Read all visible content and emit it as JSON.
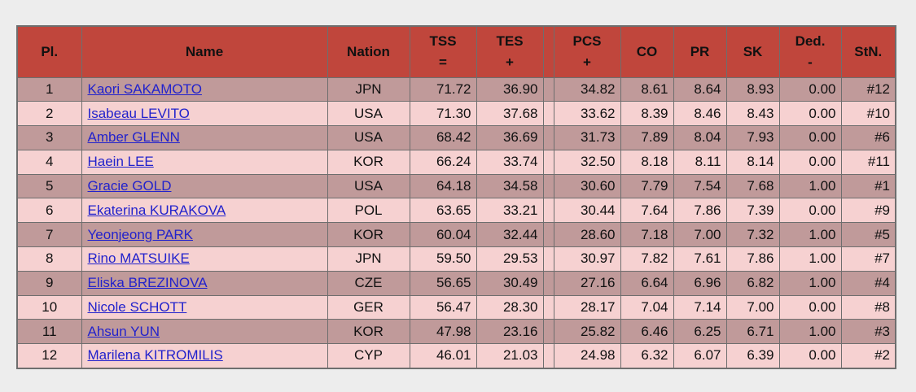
{
  "table": {
    "headers": {
      "place": "Pl.",
      "name": "Name",
      "nation": "Nation",
      "tss": [
        "TSS",
        "="
      ],
      "tes": [
        "TES",
        "+"
      ],
      "pcs": [
        "PCS",
        "+"
      ],
      "co": "CO",
      "pr": "PR",
      "sk": "SK",
      "ded": [
        "Ded.",
        "-"
      ],
      "stn": "StN."
    },
    "rows": [
      {
        "place": "1",
        "name": "Kaori SAKAMOTO",
        "nation": "JPN",
        "tss": "71.72",
        "tes": "36.90",
        "pcs": "34.82",
        "co": "8.61",
        "pr": "8.64",
        "sk": "8.93",
        "ded": "0.00",
        "stn": "#12"
      },
      {
        "place": "2",
        "name": "Isabeau LEVITO",
        "nation": "USA",
        "tss": "71.30",
        "tes": "37.68",
        "pcs": "33.62",
        "co": "8.39",
        "pr": "8.46",
        "sk": "8.43",
        "ded": "0.00",
        "stn": "#10"
      },
      {
        "place": "3",
        "name": "Amber GLENN",
        "nation": "USA",
        "tss": "68.42",
        "tes": "36.69",
        "pcs": "31.73",
        "co": "7.89",
        "pr": "8.04",
        "sk": "7.93",
        "ded": "0.00",
        "stn": "#6"
      },
      {
        "place": "4",
        "name": "Haein LEE",
        "nation": "KOR",
        "tss": "66.24",
        "tes": "33.74",
        "pcs": "32.50",
        "co": "8.18",
        "pr": "8.11",
        "sk": "8.14",
        "ded": "0.00",
        "stn": "#11"
      },
      {
        "place": "5",
        "name": "Gracie GOLD",
        "nation": "USA",
        "tss": "64.18",
        "tes": "34.58",
        "pcs": "30.60",
        "co": "7.79",
        "pr": "7.54",
        "sk": "7.68",
        "ded": "1.00",
        "stn": "#1"
      },
      {
        "place": "6",
        "name": "Ekaterina KURAKOVA",
        "nation": "POL",
        "tss": "63.65",
        "tes": "33.21",
        "pcs": "30.44",
        "co": "7.64",
        "pr": "7.86",
        "sk": "7.39",
        "ded": "0.00",
        "stn": "#9"
      },
      {
        "place": "7",
        "name": "Yeonjeong PARK",
        "nation": "KOR",
        "tss": "60.04",
        "tes": "32.44",
        "pcs": "28.60",
        "co": "7.18",
        "pr": "7.00",
        "sk": "7.32",
        "ded": "1.00",
        "stn": "#5"
      },
      {
        "place": "8",
        "name": "Rino MATSUIKE",
        "nation": "JPN",
        "tss": "59.50",
        "tes": "29.53",
        "pcs": "30.97",
        "co": "7.82",
        "pr": "7.61",
        "sk": "7.86",
        "ded": "1.00",
        "stn": "#7"
      },
      {
        "place": "9",
        "name": "Eliska BREZINOVA",
        "nation": "CZE",
        "tss": "56.65",
        "tes": "30.49",
        "pcs": "27.16",
        "co": "6.64",
        "pr": "6.96",
        "sk": "6.82",
        "ded": "1.00",
        "stn": "#4"
      },
      {
        "place": "10",
        "name": "Nicole SCHOTT",
        "nation": "GER",
        "tss": "56.47",
        "tes": "28.30",
        "pcs": "28.17",
        "co": "7.04",
        "pr": "7.14",
        "sk": "7.00",
        "ded": "0.00",
        "stn": "#8"
      },
      {
        "place": "11",
        "name": "Ahsun YUN",
        "nation": "KOR",
        "tss": "47.98",
        "tes": "23.16",
        "pcs": "25.82",
        "co": "6.46",
        "pr": "6.25",
        "sk": "6.71",
        "ded": "1.00",
        "stn": "#3"
      },
      {
        "place": "12",
        "name": "Marilena KITROMILIS",
        "nation": "CYP",
        "tss": "46.01",
        "tes": "21.03",
        "pcs": "24.98",
        "co": "6.32",
        "pr": "6.07",
        "sk": "6.39",
        "ded": "0.00",
        "stn": "#2"
      }
    ]
  },
  "colors": {
    "header_bg": "#c0463c",
    "row_dark": "#c09a9a",
    "row_light": "#f6d1d1",
    "link": "#2222cc",
    "border": "#6e6e6e",
    "page_bg": "#ededed"
  }
}
